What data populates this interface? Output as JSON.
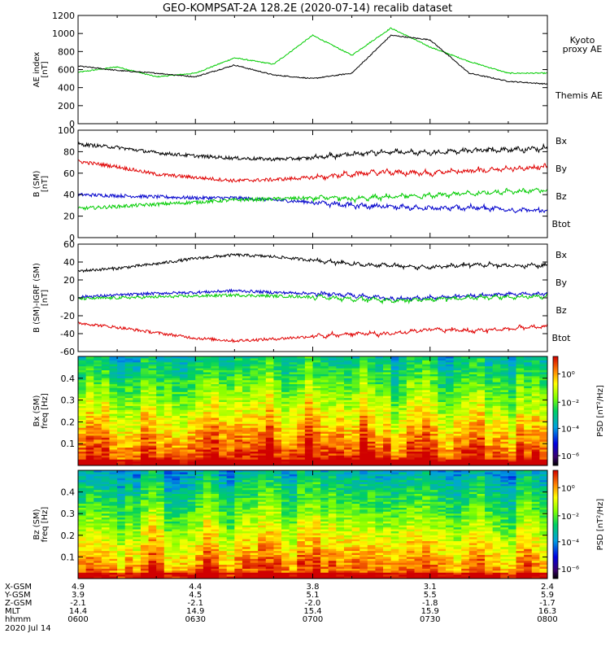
{
  "title": "GEO-KOMPSAT-2A 128.2E (2020-07-14) recalib dataset",
  "colors": {
    "black": "#000000",
    "red": "#e00000",
    "green": "#00cc00",
    "blue": "#0000cc"
  },
  "chart_data": [
    {
      "type": "line",
      "ylabel_lines": [
        "AE index",
        "[nT]"
      ],
      "ylim": [
        0,
        1200
      ],
      "yticks": [
        "0",
        "200",
        "400",
        "600",
        "800",
        "1000",
        "1200"
      ],
      "x": [
        "0600",
        "0610",
        "0620",
        "0630",
        "0640",
        "0650",
        "0700",
        "0710",
        "0720",
        "0730",
        "0740",
        "0750",
        "0800"
      ],
      "series": [
        {
          "name": "Kyoto proxy AE",
          "label_lines": [
            "Kyoto",
            "proxy AE"
          ],
          "color": "#00cc00",
          "values": [
            570,
            630,
            520,
            560,
            730,
            660,
            980,
            760,
            1060,
            850,
            690,
            560,
            560
          ]
        },
        {
          "name": "Themis AE",
          "label_lines": [
            "Themis AE"
          ],
          "color": "#000000",
          "values": [
            640,
            590,
            560,
            520,
            650,
            540,
            500,
            560,
            980,
            930,
            560,
            470,
            440
          ]
        }
      ]
    },
    {
      "type": "line",
      "ylabel_lines": [
        "B (SM)",
        "[nT]"
      ],
      "ylim": [
        0,
        100
      ],
      "yticks": [
        "0",
        "20",
        "40",
        "60",
        "80",
        "100"
      ],
      "series": [
        {
          "name": "Bx",
          "color": "#0000cc",
          "values": [
            40,
            39,
            38,
            37,
            37,
            35,
            33,
            30,
            29,
            27,
            28,
            26,
            25
          ]
        },
        {
          "name": "By",
          "color": "#00cc00",
          "values": [
            27,
            29,
            31,
            33,
            35,
            36,
            37,
            36,
            38,
            39,
            41,
            43,
            44
          ]
        },
        {
          "name": "Bz",
          "color": "#e00000",
          "values": [
            71,
            66,
            59,
            56,
            53,
            54,
            56,
            59,
            61,
            60,
            62,
            64,
            66
          ]
        },
        {
          "name": "Btot",
          "color": "#000000",
          "values": [
            87,
            84,
            79,
            76,
            74,
            73,
            74,
            78,
            80,
            79,
            81,
            82,
            83
          ]
        }
      ]
    },
    {
      "type": "line",
      "ylabel_lines": [
        "B (SM)-IGRF (SM)",
        "[nT]"
      ],
      "ylim": [
        -60,
        60
      ],
      "yticks": [
        "-60",
        "-40",
        "-20",
        "0",
        "20",
        "40",
        "60"
      ],
      "series": [
        {
          "name": "Bx",
          "color": "#0000cc",
          "values": [
            1,
            3,
            5,
            6,
            8,
            6,
            5,
            3,
            -1,
            0,
            2,
            4,
            5
          ]
        },
        {
          "name": "By",
          "color": "#00cc00",
          "values": [
            -1,
            0,
            1,
            2,
            3,
            2,
            1,
            -1,
            -3,
            -2,
            0,
            1,
            2
          ]
        },
        {
          "name": "Bz",
          "color": "#e00000",
          "values": [
            -28,
            -33,
            -39,
            -45,
            -48,
            -46,
            -43,
            -40,
            -40,
            -35,
            -37,
            -35,
            -32
          ]
        },
        {
          "name": "Btot",
          "color": "#000000",
          "values": [
            30,
            33,
            38,
            44,
            48,
            46,
            42,
            38,
            36,
            34,
            37,
            36,
            36
          ]
        }
      ]
    },
    {
      "type": "heatmap",
      "name": "Bx (SM) spectrogram",
      "ylabel_lines": [
        "Bx (SM)",
        "freq [Hz]"
      ],
      "ylim": [
        0,
        0.5
      ],
      "yticks": [
        "0.1",
        "0.2",
        "0.3",
        "0.4"
      ],
      "colorbar_label": "PSD [nT²/Hz]",
      "colorbar_ticks": [
        "10⁰",
        "10⁻²",
        "10⁻⁴",
        "10⁻⁶"
      ]
    },
    {
      "type": "heatmap",
      "name": "Bz (SM) spectrogram",
      "ylabel_lines": [
        "Bz (SM)",
        "freq [Hz]"
      ],
      "ylim": [
        0,
        0.5
      ],
      "yticks": [
        "0.1",
        "0.2",
        "0.3",
        "0.4"
      ],
      "colorbar_label": "PSD [nT²/Hz]",
      "colorbar_ticks": [
        "10⁰",
        "10⁻²",
        "10⁻⁴",
        "10⁻⁶"
      ]
    }
  ],
  "ephemeris": {
    "row_labels": [
      "X-GSM",
      "Y-GSM",
      "Z-GSM",
      "MLT",
      "hhmm"
    ],
    "columns": [
      [
        "4.9",
        "3.9",
        "-2.1",
        "14.4",
        "0600"
      ],
      [
        "4.4",
        "4.5",
        "-2.1",
        "14.9",
        "0630"
      ],
      [
        "3.8",
        "5.1",
        "-2.0",
        "15.4",
        "0700"
      ],
      [
        "3.1",
        "5.5",
        "-1.8",
        "15.9",
        "0730"
      ],
      [
        "2.4",
        "5.9",
        "-1.7",
        "16.3",
        "0800"
      ]
    ],
    "date": "2020 Jul 14"
  }
}
